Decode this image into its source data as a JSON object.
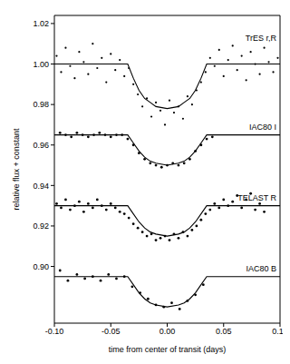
{
  "chart_data": {
    "type": "scatter",
    "x_label": "time from center of transit (days)",
    "y_label": "relative flux + constant",
    "xlim": [
      -0.1,
      0.1
    ],
    "xticks": [
      {
        "value": -0.1,
        "label": "-0.10"
      },
      -0.05,
      {
        "value": 0,
        "label": "0.00"
      },
      0.05,
      {
        "value": 0.1,
        "label": "0.10"
      }
    ],
    "ylim": [
      0.872,
      1.024
    ],
    "yticks": [
      {
        "value": 0.9,
        "label": "0.90"
      },
      0.92,
      0.94,
      0.96,
      0.98,
      {
        "value": 1,
        "label": "1.00"
      },
      1.02
    ],
    "grid": false,
    "series": [
      {
        "name": "TrES r,R",
        "color": "#000000",
        "marker": "dot",
        "line_style": "solid",
        "x": [
          -0.098,
          -0.094,
          -0.09,
          -0.086,
          -0.082,
          -0.078,
          -0.074,
          -0.07,
          -0.066,
          -0.062,
          -0.058,
          -0.054,
          -0.05,
          -0.046,
          -0.042,
          -0.038,
          -0.034,
          -0.03,
          -0.026,
          -0.022,
          -0.018,
          -0.014,
          -0.01,
          -0.006,
          -0.002,
          0.002,
          0.006,
          0.01,
          0.014,
          0.018,
          0.022,
          0.026,
          0.03,
          0.034,
          0.038,
          0.042,
          0.046,
          0.05,
          0.054,
          0.058,
          0.062,
          0.066,
          0.07,
          0.074,
          0.078,
          0.082,
          0.086,
          0.09,
          0.094,
          0.098
        ],
        "values": [
          1.004,
          0.996,
          1.008,
          0.999,
          0.993,
          1.006,
          1.001,
          0.995,
          1.01,
          0.998,
          1.003,
          0.991,
          1.005,
          0.997,
          1.002,
          0.994,
          0.998,
          0.99,
          0.985,
          0.979,
          0.983,
          0.974,
          0.981,
          0.977,
          0.97,
          0.982,
          0.976,
          0.979,
          0.973,
          0.984,
          0.98,
          0.987,
          0.991,
          0.996,
          1.003,
          0.999,
          1.007,
          0.994,
          1.002,
          1.009,
          0.997,
          1.004,
          0.992,
          1.006,
          1.0,
          0.995,
          1.008,
          1.001,
          0.996,
          1.003
        ],
        "fit": {
          "x": [
            -0.1,
            -0.035,
            -0.03,
            -0.025,
            -0.02,
            -0.015,
            -0.01,
            0,
            0.01,
            0.015,
            0.02,
            0.025,
            0.03,
            0.035,
            0.1
          ],
          "values": [
            1.0,
            1.0,
            0.993,
            0.987,
            0.983,
            0.981,
            0.979,
            0.978,
            0.979,
            0.981,
            0.983,
            0.987,
            0.993,
            1.0,
            1.0
          ]
        }
      },
      {
        "name": "IAC80 I",
        "color": "#000000",
        "marker": "dot",
        "line_style": "solid",
        "x": [
          -0.095,
          -0.09,
          -0.085,
          -0.08,
          -0.075,
          -0.07,
          -0.065,
          -0.06,
          -0.055,
          -0.05,
          -0.045,
          -0.04,
          -0.035,
          -0.03,
          -0.025,
          -0.02,
          -0.015,
          -0.01,
          -0.005,
          0.0,
          0.005,
          0.01,
          0.015,
          0.02,
          0.025,
          0.03,
          0.035,
          0.04
        ],
        "values": [
          0.966,
          0.965,
          0.964,
          0.966,
          0.965,
          0.964,
          0.965,
          0.966,
          0.965,
          0.964,
          0.965,
          0.965,
          0.963,
          0.96,
          0.956,
          0.953,
          0.951,
          0.95,
          0.949,
          0.95,
          0.951,
          0.95,
          0.951,
          0.953,
          0.957,
          0.96,
          0.963,
          0.964
        ],
        "fit": {
          "x": [
            -0.1,
            -0.035,
            -0.03,
            -0.025,
            -0.02,
            -0.015,
            -0.01,
            0,
            0.01,
            0.015,
            0.02,
            0.025,
            0.03,
            0.035,
            0.1
          ],
          "values": [
            0.965,
            0.965,
            0.961,
            0.957,
            0.954,
            0.952,
            0.951,
            0.95,
            0.951,
            0.952,
            0.954,
            0.957,
            0.961,
            0.965,
            0.965
          ]
        }
      },
      {
        "name": "TELAST R",
        "color": "#000000",
        "marker": "dot",
        "line_style": "solid",
        "x": [
          -0.098,
          -0.094,
          -0.09,
          -0.086,
          -0.082,
          -0.078,
          -0.074,
          -0.07,
          -0.066,
          -0.062,
          -0.058,
          -0.054,
          -0.05,
          -0.046,
          -0.042,
          -0.038,
          -0.034,
          -0.03,
          -0.026,
          -0.022,
          -0.018,
          -0.014,
          -0.01,
          -0.006,
          -0.002,
          0.002,
          0.006,
          0.01,
          0.014,
          0.018,
          0.022,
          0.026,
          0.03,
          0.034,
          0.038,
          0.042,
          0.046,
          0.05,
          0.054,
          0.058,
          0.062,
          0.066,
          0.07,
          0.074,
          0.078,
          0.082,
          0.086
        ],
        "values": [
          0.931,
          0.929,
          0.933,
          0.928,
          0.93,
          0.932,
          0.927,
          0.931,
          0.929,
          0.933,
          0.93,
          0.928,
          0.931,
          0.929,
          0.927,
          0.926,
          0.924,
          0.921,
          0.919,
          0.917,
          0.915,
          0.916,
          0.913,
          0.914,
          0.915,
          0.913,
          0.916,
          0.914,
          0.917,
          0.915,
          0.918,
          0.92,
          0.923,
          0.926,
          0.928,
          0.931,
          0.929,
          0.933,
          0.93,
          0.932,
          0.935,
          0.929,
          0.933,
          0.936,
          0.928,
          0.931,
          0.927
        ],
        "fit": {
          "x": [
            -0.1,
            -0.035,
            -0.03,
            -0.025,
            -0.02,
            -0.015,
            -0.01,
            0,
            0.01,
            0.015,
            0.02,
            0.025,
            0.03,
            0.035,
            0.1
          ],
          "values": [
            0.93,
            0.93,
            0.926,
            0.922,
            0.919,
            0.917,
            0.916,
            0.915,
            0.916,
            0.917,
            0.919,
            0.922,
            0.926,
            0.93,
            0.93
          ]
        }
      },
      {
        "name": "IAC80 B",
        "color": "#000000",
        "marker": "dot",
        "line_style": "solid",
        "x": [
          -0.095,
          -0.088,
          -0.08,
          -0.073,
          -0.066,
          -0.059,
          -0.052,
          -0.045,
          -0.038,
          -0.031,
          -0.024,
          -0.017,
          -0.01,
          -0.003,
          0.004,
          0.011,
          0.018,
          0.025,
          0.032
        ],
        "values": [
          0.898,
          0.893,
          0.896,
          0.894,
          0.895,
          0.893,
          0.896,
          0.894,
          0.895,
          0.89,
          0.887,
          0.884,
          0.881,
          0.88,
          0.882,
          0.879,
          0.883,
          0.886,
          0.891
        ],
        "fit": {
          "x": [
            -0.1,
            -0.035,
            -0.03,
            -0.025,
            -0.02,
            -0.015,
            -0.01,
            0,
            0.01,
            0.015,
            0.02,
            0.025,
            0.03,
            0.035,
            0.1
          ],
          "values": [
            0.895,
            0.895,
            0.891,
            0.887,
            0.884,
            0.882,
            0.881,
            0.88,
            0.881,
            0.882,
            0.884,
            0.887,
            0.891,
            0.895,
            0.895
          ]
        }
      }
    ]
  }
}
